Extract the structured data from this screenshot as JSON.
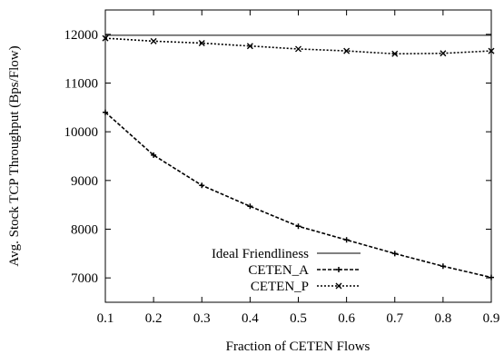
{
  "chart_data": {
    "type": "line",
    "title": "",
    "xlabel": "Fraction of CETEN Flows",
    "ylabel": "Avg. Stock TCP Throughput (Bps/Flow)",
    "xlim": [
      0.1,
      0.9
    ],
    "ylim": [
      6500,
      12500
    ],
    "xticks": [
      "0.1",
      "0.2",
      "0.3",
      "0.4",
      "0.5",
      "0.6",
      "0.7",
      "0.8",
      "0.9"
    ],
    "yticks": [
      "7000",
      "8000",
      "9000",
      "10000",
      "11000",
      "12000"
    ],
    "grid": false,
    "legend_position": "bottom-right",
    "x": [
      0.1,
      0.2,
      0.3,
      0.4,
      0.5,
      0.6,
      0.7,
      0.8,
      0.9
    ],
    "series": [
      {
        "name": "Ideal Friendliness",
        "style": "solid",
        "marker": "none",
        "values": [
          11980,
          11980,
          11980,
          11980,
          11980,
          11980,
          11980,
          11980,
          11980
        ]
      },
      {
        "name": "CETEN_A",
        "style": "dashed",
        "marker": "plus",
        "values": [
          10400,
          9520,
          8900,
          8470,
          8060,
          7780,
          7500,
          7240,
          7010
        ]
      },
      {
        "name": "CETEN_P",
        "style": "dotted",
        "marker": "x",
        "values": [
          11920,
          11860,
          11820,
          11760,
          11700,
          11660,
          11600,
          11610,
          11660
        ]
      }
    ]
  }
}
